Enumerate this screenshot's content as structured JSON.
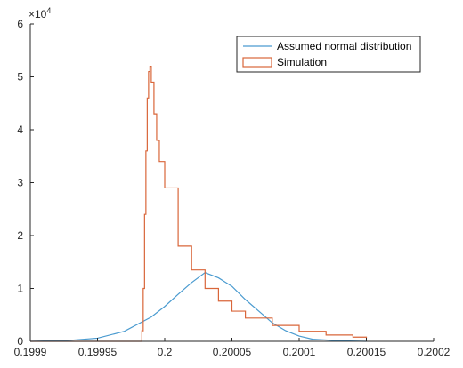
{
  "chart_data": {
    "type": "line",
    "x_range": [
      0.1999,
      0.2002
    ],
    "y_range": [
      0,
      60000
    ],
    "x_ticks": [
      {
        "value": 0.1999,
        "label": "0.1999"
      },
      {
        "value": 0.19995,
        "label": "0.19995"
      },
      {
        "value": 0.2,
        "label": "0.2"
      },
      {
        "value": 0.20005,
        "label": "0.20005"
      },
      {
        "value": 0.2001,
        "label": "0.2001"
      },
      {
        "value": 0.20015,
        "label": "0.20015"
      },
      {
        "value": 0.2002,
        "label": "0.2002"
      }
    ],
    "y_ticks": [
      {
        "value": 0,
        "label": "0"
      },
      {
        "value": 10000,
        "label": "1"
      },
      {
        "value": 20000,
        "label": "2"
      },
      {
        "value": 30000,
        "label": "3"
      },
      {
        "value": 40000,
        "label": "4"
      },
      {
        "value": 50000,
        "label": "5"
      },
      {
        "value": 60000,
        "label": "6"
      }
    ],
    "y_exponent": {
      "base": "×10",
      "power": "4"
    },
    "legend_position": "top-right",
    "grid": false,
    "series": [
      {
        "name": "Assumed normal distribution",
        "color": "#4a9bd0",
        "style": "line",
        "points": [
          [
            0.1999,
            0
          ],
          [
            0.19993,
            200
          ],
          [
            0.19995,
            600
          ],
          [
            0.19997,
            1900
          ],
          [
            0.19999,
            4600
          ],
          [
            0.2,
            6600
          ],
          [
            0.20001,
            8900
          ],
          [
            0.20002,
            11100
          ],
          [
            0.20003,
            13000
          ],
          [
            0.20004,
            12000
          ],
          [
            0.20005,
            10400
          ],
          [
            0.20006,
            7900
          ],
          [
            0.20007,
            5700
          ],
          [
            0.20008,
            3500
          ],
          [
            0.20009,
            2000
          ],
          [
            0.2001,
            1000
          ],
          [
            0.20011,
            400
          ],
          [
            0.20013,
            100
          ],
          [
            0.20015,
            0
          ]
        ]
      },
      {
        "name": "Simulation",
        "color": "#d9663a",
        "style": "stairs",
        "points": [
          [
            0.1999,
            0
          ],
          [
            0.199982,
            0
          ],
          [
            0.199983,
            2000
          ],
          [
            0.199984,
            10000
          ],
          [
            0.199985,
            24000
          ],
          [
            0.199986,
            36000
          ],
          [
            0.199987,
            46000
          ],
          [
            0.199988,
            51000
          ],
          [
            0.199989,
            52000
          ],
          [
            0.19999,
            49000
          ],
          [
            0.199992,
            43000
          ],
          [
            0.199994,
            38000
          ],
          [
            0.199996,
            34000
          ],
          [
            0.2,
            29000
          ],
          [
            0.20001,
            18000
          ],
          [
            0.20002,
            13500
          ],
          [
            0.20003,
            10000
          ],
          [
            0.20004,
            7600
          ],
          [
            0.20005,
            5700
          ],
          [
            0.20006,
            4400
          ],
          [
            0.20008,
            3000
          ],
          [
            0.2001,
            1900
          ],
          [
            0.20012,
            1200
          ],
          [
            0.20014,
            800
          ],
          [
            0.20015,
            600
          ]
        ]
      }
    ]
  }
}
